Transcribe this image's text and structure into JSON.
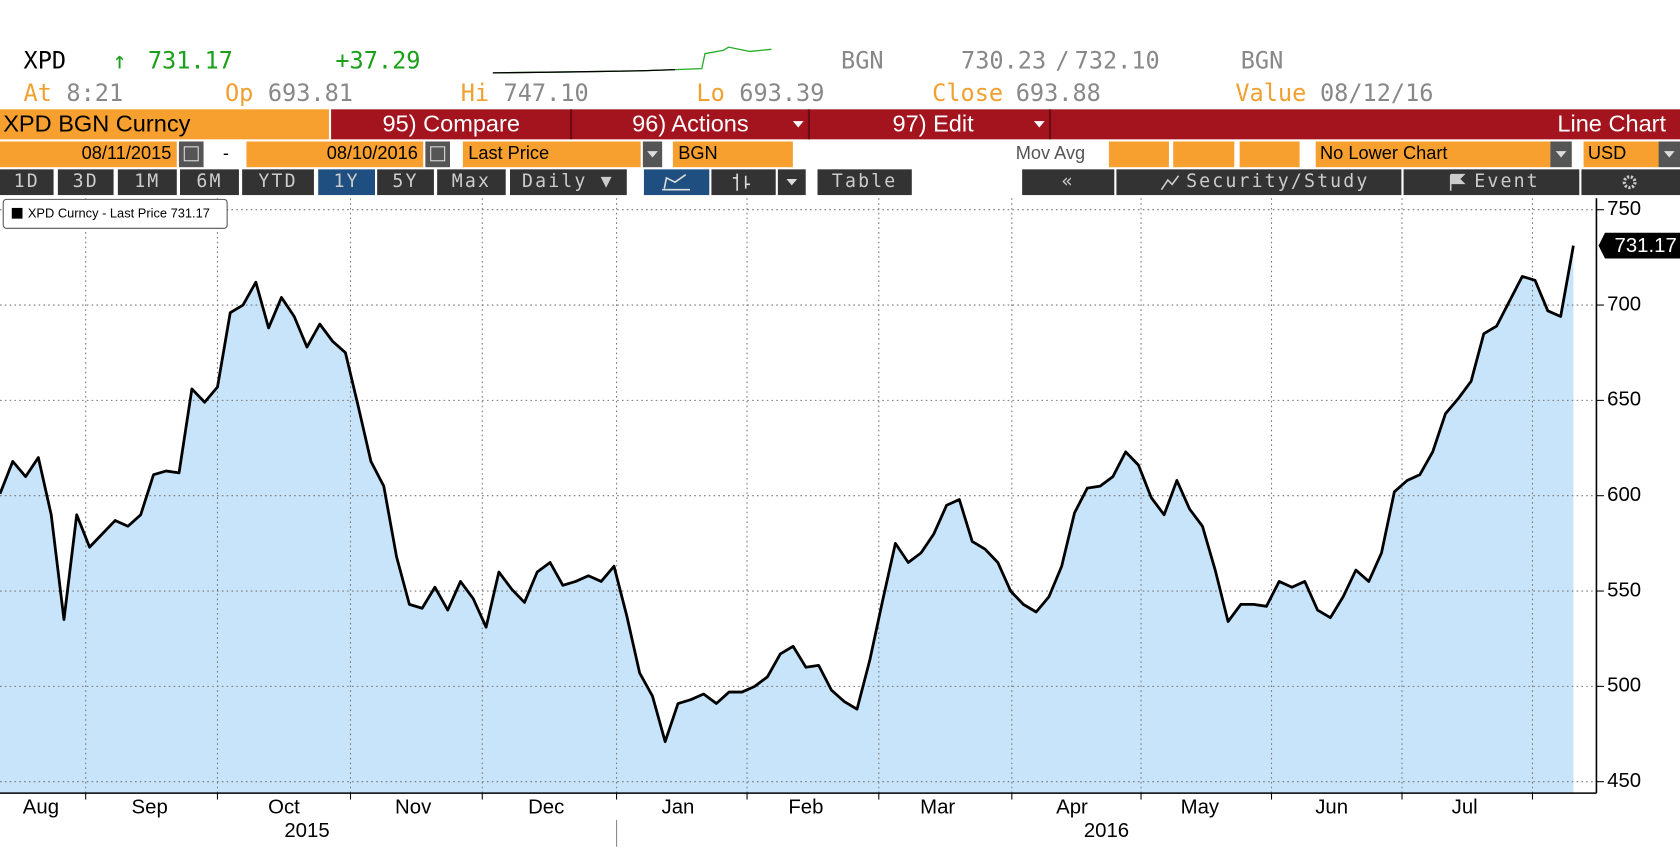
{
  "header": {
    "symbol": "XPD",
    "arrow": "↑",
    "last": "731.17",
    "change": "+37.29",
    "source": "BGN",
    "bid": "730.23",
    "separator": "/",
    "ask": "732.10",
    "source2": "BGN",
    "at_label": "At",
    "at": "8:21",
    "open_label": "Op",
    "open": "693.81",
    "high_label": "Hi",
    "high": "747.10",
    "low_label": "Lo",
    "low": "693.39",
    "close_label": "Close",
    "close": "693.88",
    "value_label": "Value",
    "value_date": "08/12/16"
  },
  "toolbar": {
    "security": "XPD BGN Curncy",
    "compare": "95) Compare",
    "actions": "96) Actions",
    "edit": "97) Edit",
    "chart_type": "Line Chart",
    "start_date": "08/11/2015",
    "dash": "-",
    "end_date": "08/10/2016",
    "field": "Last Price",
    "source": "BGN",
    "study": "Mov Avg",
    "lower_chart": "No Lower Chart",
    "currency": "USD",
    "periods": [
      "1D",
      "3D",
      "1M",
      "6M",
      "YTD",
      "1Y",
      "5Y",
      "Max"
    ],
    "active_period": "1Y",
    "frequency": "Daily ▼",
    "table": "Table",
    "back": "«",
    "security_study": "Security/Study",
    "event": "Event"
  },
  "chart_data": {
    "type": "line",
    "series": [
      {
        "name": "XPD Curncy - Last Price",
        "color": "#000000",
        "fill": "#c8e4fa",
        "values": [
          601,
          618,
          610,
          620,
          590,
          535,
          590,
          573,
          580,
          587,
          584,
          590,
          611,
          613,
          612,
          656,
          649,
          657,
          696,
          700,
          712,
          688,
          704,
          694,
          678,
          690,
          681,
          675,
          647,
          618,
          605,
          568,
          543,
          541,
          552,
          540,
          555,
          546,
          531,
          560,
          551,
          544,
          560,
          565,
          553,
          555,
          558,
          555,
          563,
          537,
          507,
          495,
          471,
          491,
          493,
          496,
          491,
          497,
          497,
          500,
          505,
          517,
          521,
          510,
          511,
          498,
          492,
          488,
          514,
          545,
          575,
          565,
          570,
          580,
          595,
          598,
          576,
          572,
          565,
          550,
          543,
          539,
          547,
          563,
          591,
          604,
          605,
          610,
          623,
          616,
          599,
          590,
          608,
          593,
          584,
          561,
          534,
          543,
          543,
          542,
          555,
          552,
          555,
          540,
          536,
          547,
          561,
          555,
          570,
          602,
          608,
          611,
          623,
          643,
          651,
          660,
          685,
          689,
          702,
          715,
          713,
          697,
          694,
          731.17
        ]
      }
    ],
    "xlim": [
      0,
      124.8
    ],
    "ylim": [
      444,
      756
    ],
    "yticks": [
      450,
      500,
      550,
      600,
      650,
      700,
      750
    ],
    "xticks": [
      {
        "value": 3.2,
        "label": "Aug"
      },
      {
        "value": 11.7,
        "label": "Sep"
      },
      {
        "value": 22.2,
        "label": "Oct"
      },
      {
        "value": 32.3,
        "label": "Nov"
      },
      {
        "value": 42.7,
        "label": "Dec"
      },
      {
        "value": 53,
        "label": "Jan"
      },
      {
        "value": 63,
        "label": "Feb"
      },
      {
        "value": 73.3,
        "label": "Mar"
      },
      {
        "value": 83.8,
        "label": "Apr"
      },
      {
        "value": 93.8,
        "label": "May"
      },
      {
        "value": 104.1,
        "label": "Jun"
      },
      {
        "value": 114.5,
        "label": "Jul"
      }
    ],
    "year_ticks": [
      {
        "value": 24,
        "label": "2015"
      },
      {
        "value": 86.5,
        "label": "2016"
      }
    ],
    "year_separator": 48.2,
    "xgrid": [
      6.7,
      17,
      27.4,
      37.7,
      48.2,
      58.4,
      68.7,
      79.1,
      89.2,
      99.4,
      109.6,
      119.8
    ],
    "grid": true
  }
}
